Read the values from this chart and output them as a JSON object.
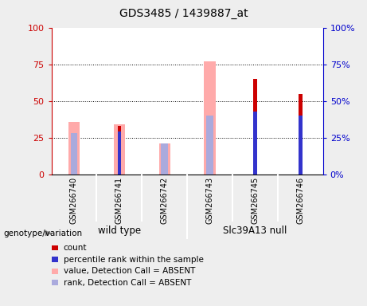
{
  "title": "GDS3485 / 1439887_at",
  "samples": [
    "GSM266740",
    "GSM266741",
    "GSM266742",
    "GSM266743",
    "GSM266745",
    "GSM266746"
  ],
  "count_values": [
    0,
    33,
    0,
    0,
    65,
    55
  ],
  "percentile_rank_values": [
    0,
    29,
    0,
    0,
    43,
    40
  ],
  "absent_value_values": [
    36,
    34,
    21,
    77,
    0,
    0
  ],
  "absent_rank_values": [
    28,
    0,
    21,
    40,
    0,
    0
  ],
  "ylim": [
    0,
    100
  ],
  "yticks": [
    0,
    25,
    50,
    75,
    100
  ],
  "count_color": "#cc0000",
  "percentile_color": "#3333cc",
  "absent_value_color": "#ffaaaa",
  "absent_rank_color": "#aaaadd",
  "left_axis_color": "#cc0000",
  "right_axis_color": "#0000cc",
  "plot_bg": "#ffffff",
  "outer_bg": "#eeeeee",
  "sample_bg": "#cccccc",
  "group_bg": "#77dd77",
  "wild_type_label": "wild type",
  "slc_label": "Slc39A13 null",
  "genotype_label": "genotype/variation",
  "legend_items": [
    {
      "label": "count",
      "color": "#cc0000"
    },
    {
      "label": "percentile rank within the sample",
      "color": "#3333cc"
    },
    {
      "label": "value, Detection Call = ABSENT",
      "color": "#ffaaaa"
    },
    {
      "label": "rank, Detection Call = ABSENT",
      "color": "#aaaadd"
    }
  ],
  "absent_bar_width": 0.25,
  "count_bar_width": 0.08
}
